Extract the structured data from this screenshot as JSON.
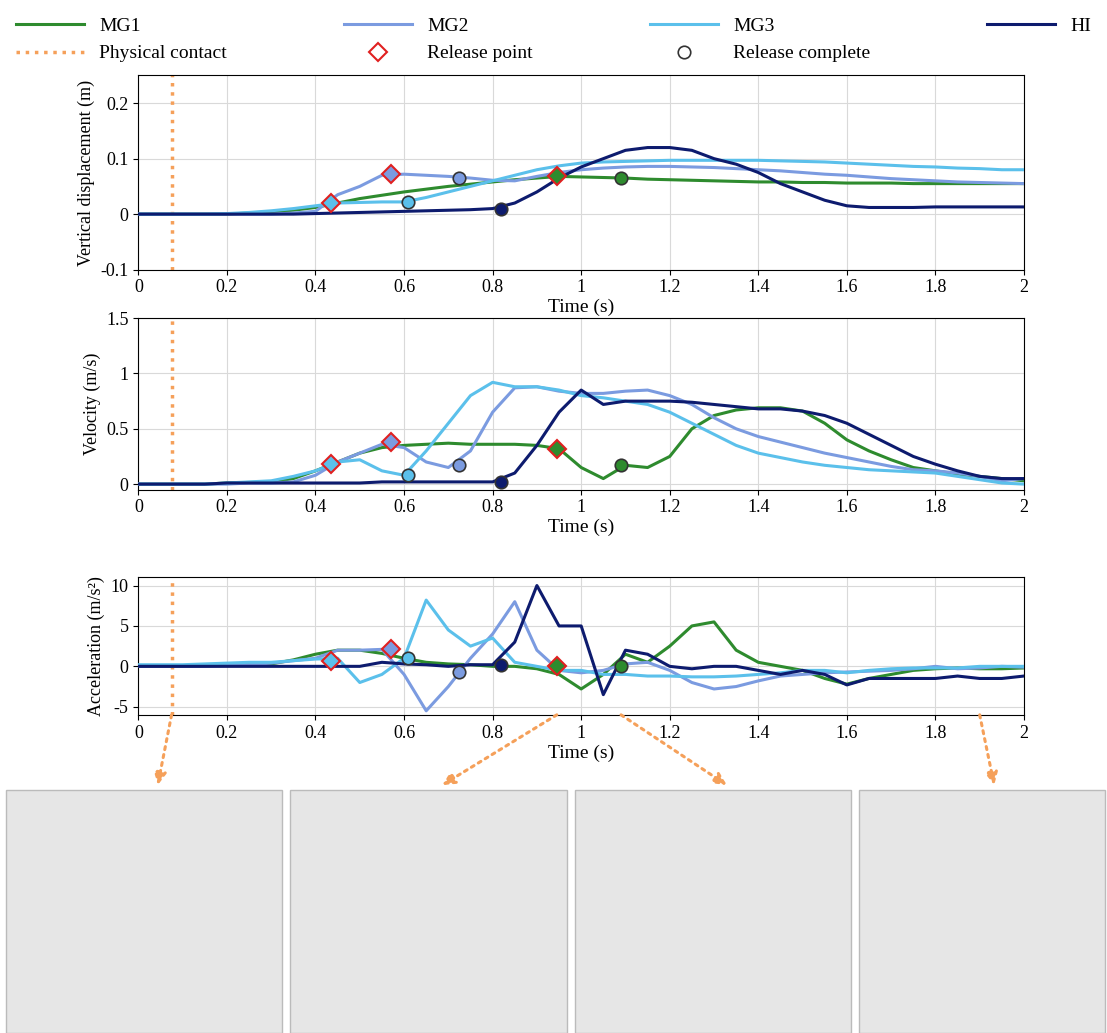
{
  "legend": "upper center",
  "legend_items": {
    "physical_contact": {
      "name": "Physical contact",
      "color": "#f5a05a",
      "line_style": "dotted",
      "x": 0.075
    },
    "release_point": {
      "name": "Release point",
      "color": "#e02020",
      "marker": "diamond"
    },
    "release_complete": {
      "name": "Release complete",
      "color": "#333333",
      "marker": "circle"
    }
  },
  "snapshots": [
    0.075,
    0.945,
    1.09,
    1.9
  ],
  "chart_data": [
    {
      "type": "line",
      "xlabel": "Time (s)",
      "ylabel": "Vertical displacement (m)",
      "xlim": [
        0,
        2
      ],
      "xticks": [
        0,
        0.2,
        0.4,
        0.6,
        0.8,
        1,
        1.2,
        1.4,
        1.6,
        1.8,
        2
      ],
      "ylim": [
        -0.1,
        0.25
      ],
      "yticks": [
        -0.1,
        0,
        0.1,
        0.2
      ],
      "grid": true,
      "x": [
        0,
        0.05,
        0.1,
        0.15,
        0.2,
        0.25,
        0.3,
        0.35,
        0.4,
        0.45,
        0.5,
        0.55,
        0.6,
        0.65,
        0.7,
        0.75,
        0.8,
        0.85,
        0.9,
        0.95,
        1,
        1.05,
        1.1,
        1.15,
        1.2,
        1.25,
        1.3,
        1.35,
        1.4,
        1.45,
        1.5,
        1.55,
        1.6,
        1.65,
        1.7,
        1.75,
        1.8,
        1.85,
        1.9,
        1.95,
        2
      ],
      "series": [
        {
          "name": "MG1",
          "color": "#2e8b2e",
          "values": [
            0,
            0,
            0,
            0,
            0,
            0.002,
            0.004,
            0.007,
            0.012,
            0.02,
            0.028,
            0.034,
            0.04,
            0.045,
            0.05,
            0.054,
            0.058,
            0.062,
            0.065,
            0.068,
            0.067,
            0.066,
            0.065,
            0.063,
            0.062,
            0.061,
            0.06,
            0.059,
            0.058,
            0.058,
            0.057,
            0.057,
            0.056,
            0.056,
            0.056,
            0.055,
            0.055,
            0.055,
            0.055,
            0.055,
            0.055
          ],
          "release_point": [
            0.945,
            0.068
          ],
          "release_complete": [
            1.09,
            0.065
          ]
        },
        {
          "name": "MG2",
          "color": "#7b9be0",
          "values": [
            0,
            0,
            0,
            0,
            0,
            0,
            0,
            0.002,
            0.005,
            0.035,
            0.05,
            0.07,
            0.072,
            0.07,
            0.068,
            0.065,
            0.061,
            0.06,
            0.068,
            0.075,
            0.08,
            0.083,
            0.085,
            0.086,
            0.086,
            0.085,
            0.084,
            0.082,
            0.08,
            0.078,
            0.075,
            0.072,
            0.07,
            0.067,
            0.064,
            0.062,
            0.06,
            0.058,
            0.057,
            0.056,
            0.055
          ],
          "release_point": [
            0.57,
            0.072
          ],
          "release_complete": [
            0.725,
            0.066
          ]
        },
        {
          "name": "MG3",
          "color": "#5bc0eb",
          "values": [
            0,
            0,
            0,
            0,
            0.001,
            0.003,
            0.006,
            0.01,
            0.015,
            0.02,
            0.021,
            0.022,
            0.022,
            0.03,
            0.04,
            0.05,
            0.06,
            0.07,
            0.08,
            0.087,
            0.092,
            0.094,
            0.095,
            0.096,
            0.097,
            0.097,
            0.097,
            0.097,
            0.097,
            0.096,
            0.095,
            0.094,
            0.092,
            0.09,
            0.088,
            0.086,
            0.085,
            0.083,
            0.082,
            0.08,
            0.08
          ],
          "release_point": [
            0.435,
            0.02
          ],
          "release_complete": [
            0.61,
            0.022
          ]
        },
        {
          "name": "HI",
          "color": "#0d1b6e",
          "values": [
            0,
            0,
            0,
            0,
            0,
            0,
            0,
            0,
            0.001,
            0.002,
            0.003,
            0.004,
            0.005,
            0.006,
            0.007,
            0.008,
            0.01,
            0.02,
            0.04,
            0.065,
            0.085,
            0.1,
            0.115,
            0.12,
            0.12,
            0.115,
            0.1,
            0.09,
            0.075,
            0.055,
            0.04,
            0.025,
            0.015,
            0.012,
            0.012,
            0.012,
            0.013,
            0.013,
            0.013,
            0.013,
            0.013
          ],
          "release_complete": [
            0.82,
            0.01
          ]
        }
      ]
    },
    {
      "type": "line",
      "xlabel": "Time (s)",
      "ylabel": "Velocity (m/s)",
      "xlim": [
        0,
        2
      ],
      "xticks": [
        0,
        0.2,
        0.4,
        0.6,
        0.8,
        1,
        1.2,
        1.4,
        1.6,
        1.8,
        2
      ],
      "ylim": [
        -0.05,
        1.5
      ],
      "yticks": [
        0,
        0.5,
        1,
        1.5
      ],
      "grid": true,
      "x": [
        0,
        0.05,
        0.1,
        0.15,
        0.2,
        0.25,
        0.3,
        0.35,
        0.4,
        0.45,
        0.5,
        0.55,
        0.6,
        0.65,
        0.7,
        0.75,
        0.8,
        0.85,
        0.9,
        0.95,
        1,
        1.05,
        1.1,
        1.15,
        1.2,
        1.25,
        1.3,
        1.35,
        1.4,
        1.45,
        1.5,
        1.55,
        1.6,
        1.65,
        1.7,
        1.75,
        1.8,
        1.85,
        1.9,
        1.95,
        2
      ],
      "series": [
        {
          "name": "MG1",
          "color": "#2e8b2e",
          "values": [
            0,
            0,
            0,
            0,
            0.01,
            0.015,
            0.02,
            0.05,
            0.12,
            0.2,
            0.28,
            0.33,
            0.35,
            0.36,
            0.37,
            0.36,
            0.36,
            0.36,
            0.35,
            0.32,
            0.15,
            0.05,
            0.17,
            0.15,
            0.25,
            0.5,
            0.62,
            0.67,
            0.69,
            0.69,
            0.66,
            0.55,
            0.4,
            0.3,
            0.22,
            0.15,
            0.12,
            0.09,
            0.07,
            0.05,
            0.03
          ],
          "release_point": [
            0.945,
            0.32
          ],
          "release_complete": [
            1.09,
            0.17
          ]
        },
        {
          "name": "MG2",
          "color": "#7b9be0",
          "values": [
            0,
            0,
            0,
            0,
            0,
            0.01,
            0.01,
            0.02,
            0.08,
            0.2,
            0.28,
            0.36,
            0.33,
            0.2,
            0.15,
            0.3,
            0.65,
            0.87,
            0.88,
            0.84,
            0.82,
            0.82,
            0.84,
            0.85,
            0.8,
            0.72,
            0.6,
            0.5,
            0.43,
            0.38,
            0.33,
            0.28,
            0.24,
            0.2,
            0.16,
            0.13,
            0.12,
            0.1,
            0.07,
            0.03,
            0.05
          ],
          "release_point": [
            0.57,
            0.38
          ],
          "release_complete": [
            0.725,
            0.17
          ]
        },
        {
          "name": "MG3",
          "color": "#5bc0eb",
          "values": [
            0,
            0,
            0,
            0,
            0.01,
            0.02,
            0.03,
            0.07,
            0.12,
            0.2,
            0.22,
            0.12,
            0.08,
            0.3,
            0.55,
            0.8,
            0.92,
            0.88,
            0.88,
            0.85,
            0.8,
            0.78,
            0.75,
            0.72,
            0.65,
            0.55,
            0.45,
            0.35,
            0.28,
            0.24,
            0.2,
            0.17,
            0.15,
            0.13,
            0.12,
            0.11,
            0.1,
            0.07,
            0.04,
            0.01,
            0
          ],
          "release_point": [
            0.435,
            0.18
          ],
          "release_complete": [
            0.61,
            0.08
          ]
        },
        {
          "name": "HI",
          "color": "#0d1b6e",
          "values": [
            0,
            0,
            0,
            0,
            0.01,
            0.01,
            0.01,
            0.01,
            0.01,
            0.01,
            0.01,
            0.02,
            0.02,
            0.02,
            0.02,
            0.02,
            0.02,
            0.1,
            0.35,
            0.65,
            0.85,
            0.72,
            0.75,
            0.75,
            0.75,
            0.74,
            0.72,
            0.7,
            0.68,
            0.68,
            0.66,
            0.62,
            0.55,
            0.45,
            0.35,
            0.25,
            0.18,
            0.12,
            0.07,
            0.05,
            0.05
          ],
          "release_complete": [
            0.82,
            0.02
          ]
        }
      ]
    },
    {
      "type": "line",
      "xlabel": "Time (s)",
      "ylabel": "Acceleration (m/s²)",
      "xlim": [
        0,
        2
      ],
      "xticks": [
        0,
        0.2,
        0.4,
        0.6,
        0.8,
        1,
        1.2,
        1.4,
        1.6,
        1.8,
        2
      ],
      "ylim": [
        -6,
        11
      ],
      "yticks": [
        -5,
        0,
        5,
        10
      ],
      "grid": true,
      "x": [
        0,
        0.05,
        0.1,
        0.15,
        0.2,
        0.25,
        0.3,
        0.35,
        0.4,
        0.45,
        0.5,
        0.55,
        0.6,
        0.65,
        0.7,
        0.75,
        0.8,
        0.85,
        0.9,
        0.95,
        1,
        1.05,
        1.1,
        1.15,
        1.2,
        1.25,
        1.3,
        1.35,
        1.4,
        1.45,
        1.5,
        1.55,
        1.6,
        1.65,
        1.7,
        1.75,
        1.8,
        1.85,
        1.9,
        1.95,
        2
      ],
      "series": [
        {
          "name": "MG1",
          "color": "#2e8b2e",
          "values": [
            0,
            0,
            0,
            0.1,
            0.2,
            0.3,
            0.3,
            0.8,
            1.5,
            2.0,
            2.0,
            1.6,
            1.0,
            0.5,
            0.3,
            0.2,
            0,
            0,
            -0.3,
            -1.0,
            -2.8,
            -1.0,
            1.5,
            0.5,
            2.5,
            5.0,
            5.5,
            2.0,
            0.5,
            0,
            -0.5,
            -1.5,
            -2.2,
            -1.5,
            -1.0,
            -0.5,
            -0.3,
            -0.2,
            -0.3,
            -0.3,
            -0.2
          ],
          "release_point": [
            0.945,
            0.1
          ],
          "release_complete": [
            1.09,
            0.0
          ]
        },
        {
          "name": "MG2",
          "color": "#7b9be0",
          "values": [
            0,
            0,
            0,
            0,
            0.1,
            0.2,
            0.4,
            0.7,
            1.0,
            2.0,
            2.0,
            2.1,
            -1.0,
            -5.5,
            -2.5,
            1.0,
            4.0,
            8.0,
            2.0,
            -0.5,
            -0.8,
            -0.5,
            0.3,
            0.5,
            -0.5,
            -2.0,
            -2.8,
            -2.5,
            -1.8,
            -1.2,
            -1.0,
            -0.8,
            -0.7,
            -0.6,
            -0.5,
            -0.3,
            0,
            -0.3,
            -0.2,
            0,
            -0.1
          ],
          "release_point": [
            0.57,
            2.2
          ],
          "release_complete": [
            0.725,
            -0.7
          ]
        },
        {
          "name": "MG3",
          "color": "#5bc0eb",
          "values": [
            0.2,
            0.2,
            0.2,
            0.3,
            0.4,
            0.5,
            0.5,
            0.7,
            0.9,
            1.0,
            -2.0,
            -1.0,
            1.0,
            8.2,
            4.5,
            2.5,
            3.5,
            0.5,
            0,
            -0.5,
            -0.5,
            -1.0,
            -1.0,
            -1.2,
            -1.2,
            -1.3,
            -1.3,
            -1.2,
            -1.0,
            -0.8,
            -0.5,
            -0.5,
            -0.8,
            -0.5,
            -0.3,
            -0.2,
            -0.2,
            -0.2,
            0,
            0,
            0
          ],
          "release_point": [
            0.435,
            0.6
          ],
          "release_complete": [
            0.61,
            1.0
          ]
        },
        {
          "name": "HI",
          "color": "#0d1b6e",
          "values": [
            0,
            0,
            0,
            0,
            0,
            0,
            0,
            0,
            0,
            0,
            0,
            0.5,
            0.3,
            0.2,
            0,
            0.2,
            0.2,
            3.0,
            10.0,
            5.0,
            5.0,
            -3.5,
            2.0,
            1.5,
            0,
            -0.3,
            0,
            0,
            -0.5,
            -1.0,
            -0.5,
            -1.0,
            -2.3,
            -1.5,
            -1.5,
            -1.5,
            -1.5,
            -1.2,
            -1.5,
            -1.5,
            -1.2
          ],
          "release_complete": [
            0.82,
            0.2
          ]
        }
      ]
    }
  ]
}
